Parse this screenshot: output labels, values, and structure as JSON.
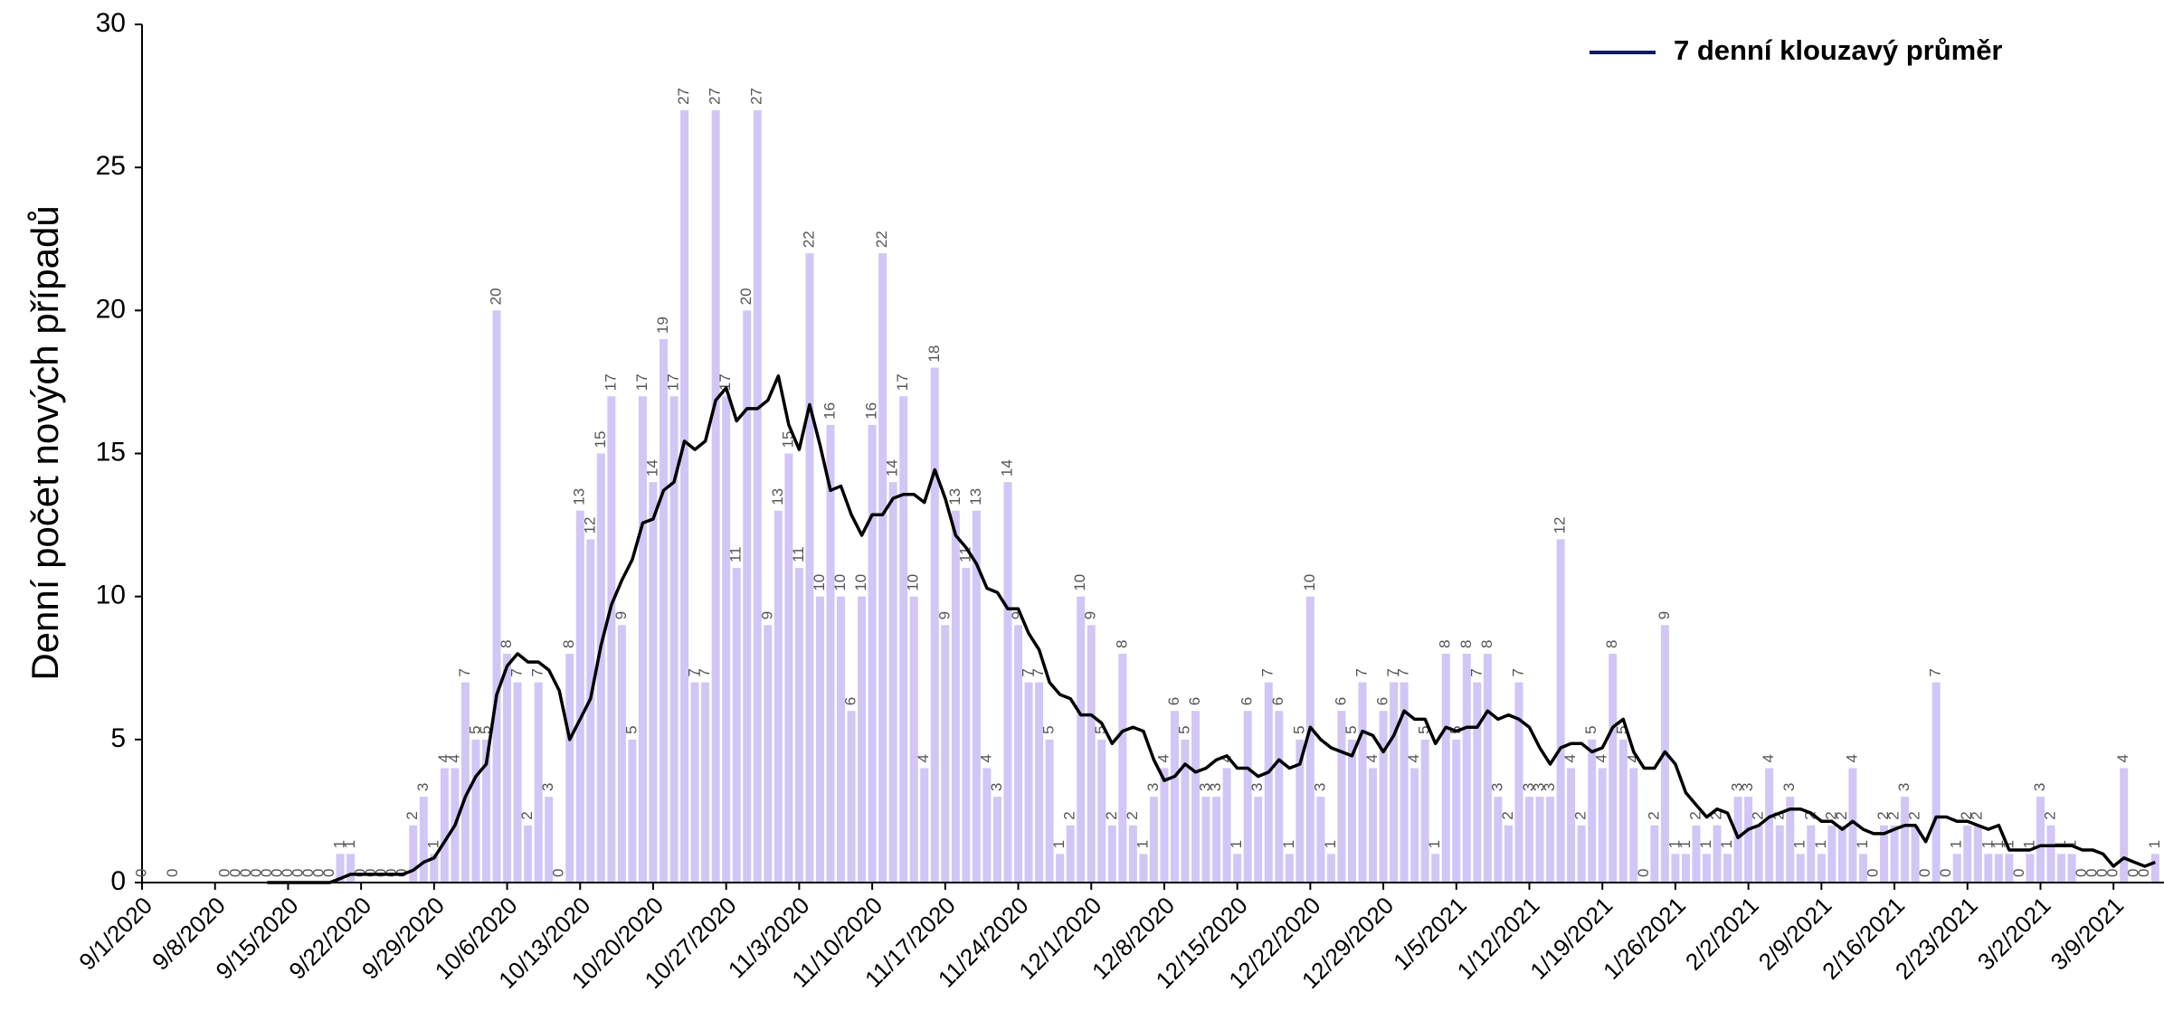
{
  "chart_data": {
    "type": "bar",
    "ylabel": "Denní počet nových případů",
    "ylim": [
      0,
      30
    ],
    "yticks": [
      0,
      5,
      10,
      15,
      20,
      25,
      30
    ],
    "color": "#d2c6f6",
    "legend": "upper right",
    "grid": false,
    "categories": [
      "9/1/2020",
      null,
      null,
      null,
      null,
      null,
      null,
      "9/8/2020",
      null,
      null,
      null,
      null,
      null,
      null,
      "9/15/2020",
      null,
      null,
      null,
      null,
      null,
      null,
      "9/22/2020",
      null,
      null,
      null,
      null,
      null,
      null,
      "9/29/2020",
      null,
      null,
      null,
      null,
      null,
      null,
      "10/6/2020",
      null,
      null,
      null,
      null,
      null,
      null,
      "10/13/2020",
      null,
      null,
      null,
      null,
      null,
      null,
      "10/20/2020",
      null,
      null,
      null,
      null,
      null,
      null,
      "10/27/2020",
      null,
      null,
      null,
      null,
      null,
      null,
      "11/3/2020",
      null,
      null,
      null,
      null,
      null,
      null,
      "11/10/2020",
      null,
      null,
      null,
      null,
      null,
      null,
      "11/17/2020",
      null,
      null,
      null,
      null,
      null,
      null,
      "11/24/2020",
      null,
      null,
      null,
      null,
      null,
      null,
      "12/1/2020",
      null,
      null,
      null,
      null,
      null,
      null,
      "12/8/2020",
      null,
      null,
      null,
      null,
      null,
      null,
      "12/15/2020",
      null,
      null,
      null,
      null,
      null,
      null,
      "12/22/2020",
      null,
      null,
      null,
      null,
      null,
      null,
      "12/29/2020",
      null,
      null,
      null,
      null,
      null,
      null,
      "1/5/2021",
      null,
      null,
      null,
      null,
      null,
      null,
      "1/12/2021",
      null,
      null,
      null,
      null,
      null,
      null,
      "1/19/2021",
      null,
      null,
      null,
      null,
      null,
      null,
      "1/26/2021",
      null,
      null,
      null,
      null,
      null,
      null,
      "2/2/2021",
      null,
      null,
      null,
      null,
      null,
      null,
      "2/9/2021",
      null,
      null,
      null,
      null,
      null,
      null,
      "2/16/2021",
      null,
      null,
      null,
      null,
      null,
      null,
      "2/23/2021",
      null,
      null,
      null,
      null,
      null,
      null,
      "3/2/2021",
      null,
      null,
      null,
      null,
      null,
      null,
      "3/9/2021",
      null,
      null,
      null,
      null
    ],
    "values": [
      0,
      null,
      null,
      0,
      null,
      null,
      null,
      null,
      0,
      0,
      0,
      0,
      0,
      0,
      0,
      0,
      0,
      0,
      0,
      1,
      1,
      0,
      0,
      0,
      0,
      0,
      2,
      3,
      1,
      4,
      4,
      7,
      5,
      5,
      20,
      8,
      7,
      2,
      7,
      3,
      0,
      8,
      13,
      12,
      15,
      17,
      9,
      5,
      17,
      14,
      19,
      17,
      27,
      7,
      7,
      27,
      17,
      11,
      20,
      27,
      9,
      13,
      15,
      11,
      22,
      10,
      16,
      10,
      6,
      10,
      16,
      22,
      14,
      17,
      10,
      4,
      18,
      9,
      13,
      11,
      13,
      4,
      3,
      14,
      9,
      7,
      7,
      5,
      1,
      2,
      10,
      9,
      5,
      2,
      8,
      2,
      1,
      3,
      4,
      6,
      5,
      6,
      3,
      3,
      4,
      1,
      6,
      3,
      7,
      6,
      1,
      5,
      10,
      3,
      1,
      6,
      5,
      7,
      4,
      6,
      7,
      7,
      4,
      5,
      1,
      8,
      5,
      8,
      7,
      8,
      3,
      2,
      7,
      3,
      3,
      3,
      12,
      4,
      2,
      5,
      4,
      8,
      5,
      4,
      0,
      2,
      9,
      1,
      1,
      2,
      1,
      2,
      1,
      3,
      3,
      2,
      4,
      2,
      3,
      1,
      2,
      1,
      2,
      2,
      4,
      1,
      0,
      2,
      2,
      3,
      2,
      0,
      7,
      0,
      1,
      2,
      2,
      1,
      1,
      1,
      0,
      1,
      3,
      2,
      1,
      1,
      0,
      0,
      0,
      0,
      4,
      0,
      0,
      1
    ],
    "series": [
      {
        "name": "7 denní klouzavý průměr",
        "type": "line",
        "color": "#000000",
        "legend_color": "#0b1a5c",
        "values": [
          null,
          null,
          null,
          null,
          null,
          null,
          null,
          null,
          null,
          null,
          null,
          null,
          0,
          0,
          0,
          0,
          0,
          0,
          0,
          0.14,
          0.29,
          0.29,
          0.29,
          0.29,
          0.29,
          0.29,
          0.43,
          0.71,
          0.86,
          1.43,
          2,
          3,
          3.71,
          4.14,
          6.57,
          7.57,
          8,
          7.71,
          7.71,
          7.43,
          6.71,
          5,
          5.71,
          6.43,
          8.29,
          9.71,
          10.57,
          11.29,
          12.57,
          12.71,
          13.71,
          14,
          15.43,
          15.14,
          15.43,
          16.86,
          17.29,
          16.14,
          16.57,
          16.57,
          16.86,
          17.71,
          16,
          15.14,
          16.71,
          15.29,
          13.71,
          13.86,
          12.86,
          12.14,
          12.86,
          12.86,
          13.43,
          13.57,
          13.57,
          13.29,
          14.43,
          13.43,
          12.14,
          11.71,
          11.14,
          10.29,
          10.14,
          9.57,
          9.57,
          8.71,
          8.14,
          7,
          6.57,
          6.43,
          5.86,
          5.86,
          5.57,
          4.86,
          5.29,
          5.43,
          5.29,
          4.29,
          3.57,
          3.71,
          4.14,
          3.86,
          4,
          4.29,
          4.43,
          4,
          4,
          3.71,
          3.86,
          4.29,
          4,
          4.14,
          5.43,
          5,
          4.71,
          4.57,
          4.43,
          5.29,
          5.14,
          4.57,
          5.14,
          6,
          5.71,
          5.71,
          4.86,
          5.43,
          5.29,
          5.43,
          5.43,
          6,
          5.71,
          5.86,
          5.71,
          5.43,
          4.71,
          4.14,
          4.71,
          4.86,
          4.86,
          4.57,
          4.71,
          5.43,
          5.71,
          4.57,
          4,
          4,
          4.57,
          4.14,
          3.14,
          2.71,
          2.29,
          2.57,
          2.43,
          1.57,
          1.86,
          2,
          2.29,
          2.43,
          2.57,
          2.57,
          2.43,
          2.14,
          2.14,
          1.86,
          2.14,
          1.86,
          1.71,
          1.71,
          1.86,
          2,
          2,
          1.43,
          2.29,
          2.29,
          2.14,
          2.14,
          2,
          1.86,
          2,
          1.14,
          1.14,
          1.14,
          1.29,
          1.29,
          1.29,
          1.29,
          1.14,
          1.14,
          1,
          0.57,
          0.86,
          0.71,
          0.57,
          0.71
        ]
      }
    ]
  }
}
